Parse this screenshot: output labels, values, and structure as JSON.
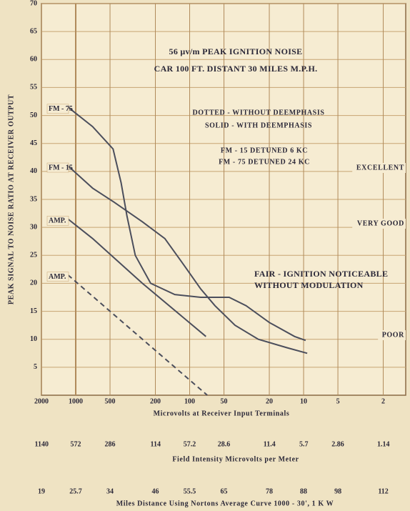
{
  "chart_data": {
    "type": "line",
    "ylabel": "PEAK SIGNAL TO NOISE RATIO AT RECEIVER OUTPUT",
    "xlabel": "Microvolts at Receiver Input Terminals",
    "xscale": "log",
    "xlim": [
      2000,
      1.27
    ],
    "xticks": [
      2000,
      1000,
      500,
      200,
      100,
      50,
      20,
      10,
      5,
      2
    ],
    "x2label": "Field Intensity Microvolts per Meter",
    "x2lim": [
      1144,
      0.726
    ],
    "x2ticks": [
      1140,
      572,
      286,
      114,
      57.2,
      28.6,
      11.4,
      5.7,
      2.86,
      1.14
    ],
    "x3label": "Miles Distance Using Nortons Average Curve 1000 - 30', 1 K W",
    "x3ticks": [
      19,
      25.7,
      34,
      46,
      55.5,
      65,
      78,
      88,
      98,
      112
    ],
    "ylim": [
      0,
      70
    ],
    "yticks": [
      5,
      10,
      15,
      20,
      25,
      30,
      35,
      40,
      45,
      50,
      55,
      60,
      65,
      70
    ],
    "grid": true,
    "annotations": [
      "56 μv/m  PEAK IGNITION NOISE",
      "CAR 100 FT. DISTANT 30 MILES M.P.H.",
      "DOTTED - WITHOUT DEEMPHASIS",
      "SOLID - WITH DEEMPHASIS",
      "FM - 15 DETUNED 6 KC",
      "FM - 75 DETUNED 24 KC",
      "FAIR - IGNITION NOTICEABLE",
      "WITHOUT MODULATION",
      "EXCELLENT",
      "VERY GOOD",
      "POOR"
    ],
    "series": [
      {
        "name": "FM - 75",
        "color": "#4b4e5c",
        "dashed": false,
        "x": [
          1170,
          710,
          470,
          400,
          355,
          300,
          220,
          135,
          80,
          45,
          32,
          20,
          12,
          9.6
        ],
        "values": [
          51.5,
          48,
          44,
          38,
          32,
          25,
          20,
          18,
          17.5,
          17.5,
          16,
          13,
          10.5,
          9.8
        ]
      },
      {
        "name": "FM - 15",
        "color": "#4b4e5c",
        "dashed": false,
        "x": [
          1170,
          710,
          460,
          260,
          165,
          110,
          80,
          60,
          40,
          25,
          14,
          9.3
        ],
        "values": [
          41,
          37,
          34.5,
          31,
          28,
          23,
          19,
          16,
          12.5,
          10,
          8.5,
          7.5
        ]
      },
      {
        "name": "AMP.",
        "color": "#4b4e5c",
        "dashed": false,
        "x": [
          1170,
          710,
          260,
          72
        ],
        "values": [
          31.5,
          28,
          20,
          10.5
        ]
      },
      {
        "name": "AMP.",
        "color": "#4b4e5c",
        "dashed": true,
        "x": [
          1170,
          70
        ],
        "values": [
          21.5,
          0
        ]
      }
    ]
  }
}
